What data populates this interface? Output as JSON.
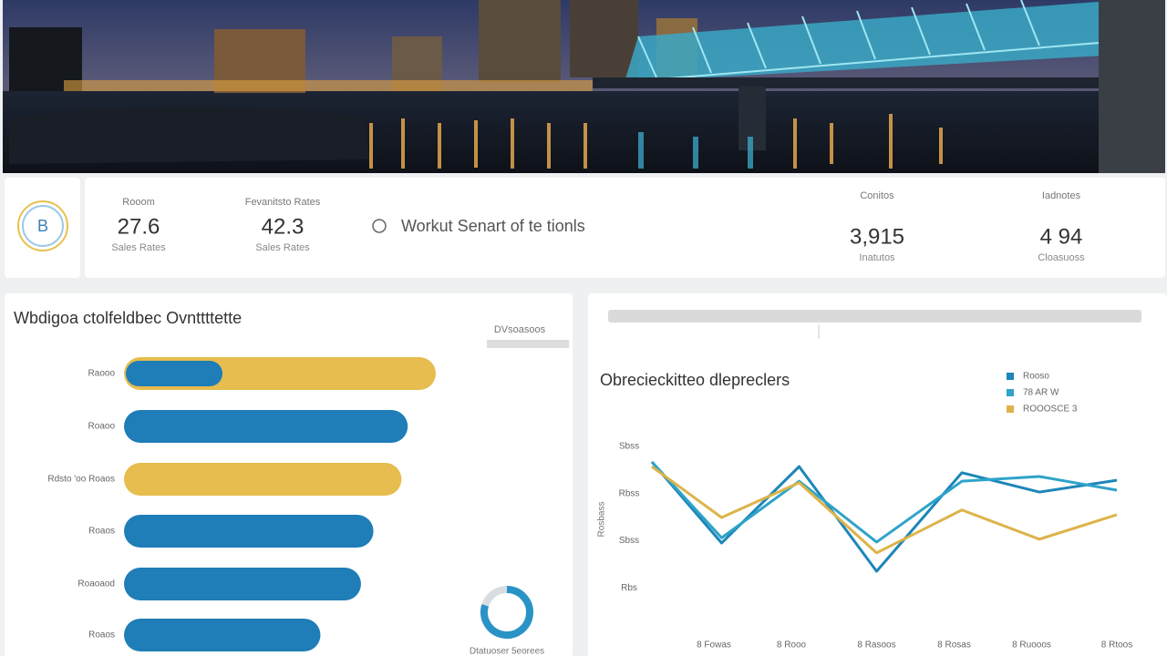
{
  "stats": [
    {
      "label": "Rooom",
      "value": "27.6",
      "caption": "Sales Rates"
    },
    {
      "label": "Fevanitsto Rates",
      "value": "42.3",
      "caption": "Sales Rates"
    },
    {
      "label": "Conitos",
      "value": "3,915",
      "caption": "Inatutos"
    },
    {
      "label": "Iadnotes",
      "value": "4 94",
      "caption": "Cloasuoss"
    }
  ],
  "badge": "B",
  "headline": "Workut Senart of te tionls",
  "chart_data": [
    {
      "type": "bar",
      "orientation": "horizontal",
      "title": "Wbdigoa ctolfeldbec Ovnttttette",
      "legend": "DVsoasoos",
      "categories": [
        "Raooo",
        "Roaoo",
        "Rdsto 'oo Roaos",
        "Roaos",
        "Roaoaod",
        "Roaos"
      ],
      "values": [
        100,
        91,
        89,
        80,
        76,
        63
      ],
      "colors": [
        "#e6bd4e",
        "#1f7db8",
        "#e6bd4e",
        "#1f7db8",
        "#1f7db8",
        "#1f7db8"
      ],
      "overlay": {
        "values": [
          31,
          null,
          null,
          null,
          null,
          null
        ],
        "color": "#1f7db8"
      },
      "xlim": [
        0,
        100
      ]
    },
    {
      "type": "line",
      "title": "Obrecieckitteo dlepreclers",
      "ylabel": "Rosbass",
      "x": [
        0,
        0.9,
        1.9,
        2.9,
        4,
        5,
        6
      ],
      "xlim": [
        0,
        6
      ],
      "xticks": [
        {
          "value": 0.8,
          "label": "8 Fowas"
        },
        {
          "value": 1.8,
          "label": "8 Rooo"
        },
        {
          "value": 2.9,
          "label": "8 Rasoos"
        },
        {
          "value": 3.9,
          "label": "8 Rosas"
        },
        {
          "value": 4.9,
          "label": "8 Ruooos"
        },
        {
          "value": 6,
          "label": "8 Rtoos"
        }
      ],
      "ylim": [
        0.5,
        4.5
      ],
      "yticks": [
        {
          "value": 4,
          "label": "Sbss"
        },
        {
          "value": 3,
          "label": "Rbss"
        },
        {
          "value": 2,
          "label": "Sbss"
        },
        {
          "value": 1,
          "label": "Rbs"
        }
      ],
      "grid": false,
      "series": [
        {
          "name": "Rooso",
          "color": "#1d86b8",
          "values": [
            3.67,
            1.95,
            3.57,
            1.35,
            3.44,
            3.03,
            3.28
          ]
        },
        {
          "name": "78 AR W",
          "color": "#2fa3c9",
          "values": [
            3.67,
            2.06,
            3.26,
            1.97,
            3.26,
            3.36,
            3.07
          ]
        },
        {
          "name": "ROOOSCE 3",
          "color": "#dcb44a",
          "values": [
            3.57,
            2.49,
            3.23,
            1.74,
            2.65,
            2.03,
            2.55
          ]
        }
      ]
    },
    {
      "type": "donut",
      "label": "Dtatuoser 5eorees",
      "values": [
        80,
        20
      ],
      "colors": [
        "#2a93c6",
        "#d8dde2"
      ]
    }
  ]
}
